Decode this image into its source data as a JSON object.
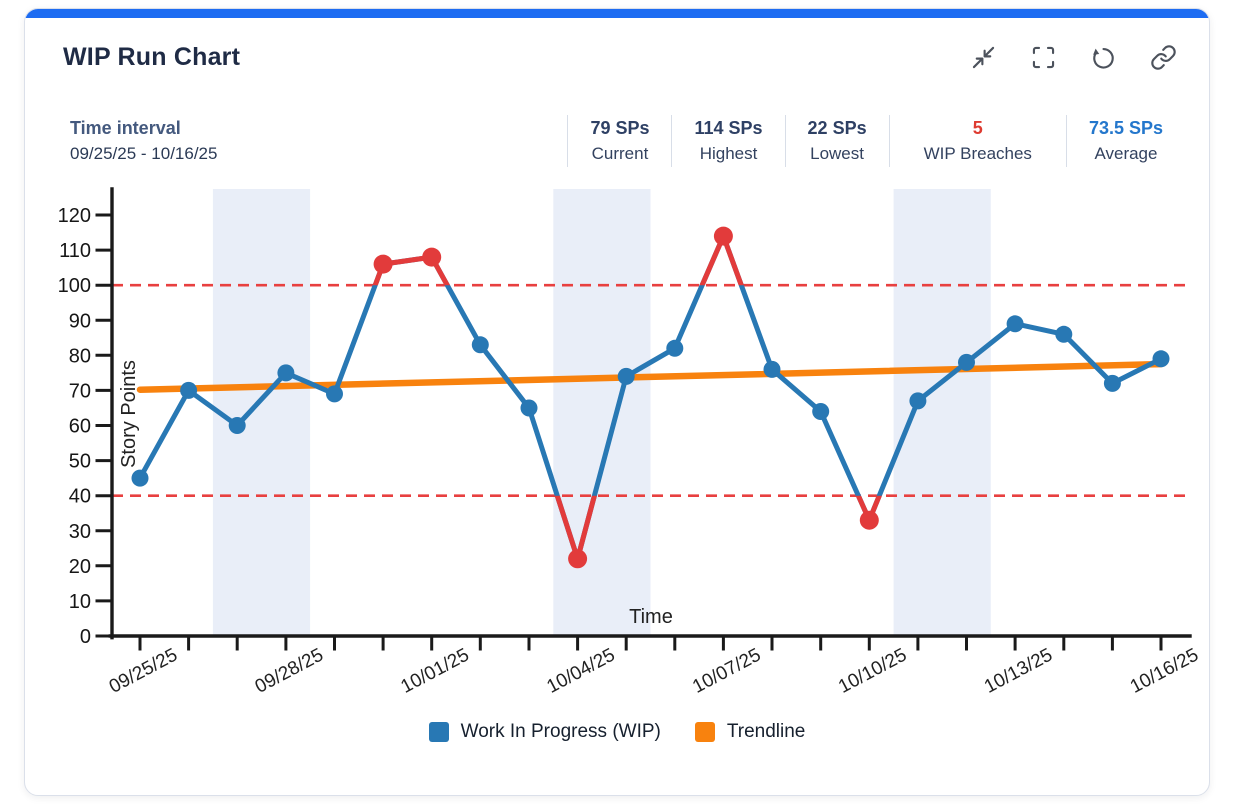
{
  "card": {
    "title": "WIP Run Chart",
    "toolbar_icons": [
      "collapse",
      "fullscreen",
      "reset",
      "link"
    ]
  },
  "summary": {
    "time_interval": {
      "label": "Time interval",
      "range": "09/25/25 - 10/16/25"
    },
    "stats": [
      {
        "value": "79 SPs",
        "label": "Current"
      },
      {
        "value": "114 SPs",
        "label": "Highest"
      },
      {
        "value": "22 SPs",
        "label": "Lowest"
      },
      {
        "value": "5",
        "label": "WIP Breaches"
      },
      {
        "value": "73.5 SPs",
        "label": "Average"
      }
    ]
  },
  "chart_data": {
    "type": "line",
    "xlabel": "Time",
    "ylabel": "Story Points",
    "ylim": [
      0,
      127
    ],
    "yticks": [
      0,
      10,
      20,
      30,
      40,
      50,
      60,
      70,
      80,
      90,
      100,
      110,
      120
    ],
    "x": [
      "09/25/25",
      "09/26/25",
      "09/27/25",
      "09/28/25",
      "09/29/25",
      "09/30/25",
      "10/01/25",
      "10/02/25",
      "10/03/25",
      "10/04/25",
      "10/05/25",
      "10/06/25",
      "10/07/25",
      "10/08/25",
      "10/09/25",
      "10/10/25",
      "10/11/25",
      "10/12/25",
      "10/13/25",
      "10/14/25",
      "10/15/25",
      "10/16/25"
    ],
    "x_label_every": 3,
    "series": [
      {
        "name": "Work In Progress (WIP)",
        "values": [
          45,
          70,
          60,
          75,
          69,
          106,
          108,
          83,
          65,
          22,
          74,
          82,
          114,
          76,
          64,
          33,
          67,
          78,
          89,
          86,
          72,
          79
        ]
      }
    ],
    "trendline": {
      "name": "Trendline",
      "start": 70.2,
      "end": 77.5
    },
    "limits": {
      "upper": 100,
      "lower": 40
    },
    "weekend_bands": [
      [
        2,
        3
      ],
      [
        9,
        10
      ],
      [
        16,
        17
      ]
    ],
    "legend": [
      "Work In Progress (WIP)",
      "Trendline"
    ],
    "colors": {
      "series": "#2878b4",
      "breach": "#e23b3b",
      "limit_line": "#e84040",
      "trend": "#f8820e",
      "weekend_band": "#e9eef8",
      "axis": "#1a1a1a"
    }
  }
}
